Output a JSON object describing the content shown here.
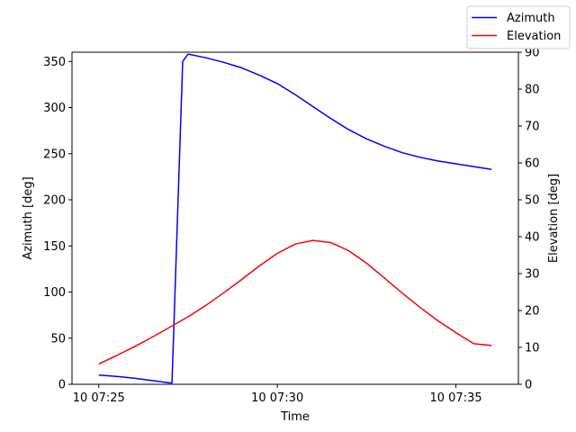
{
  "chart_data": {
    "type": "line",
    "xlabel": "Time",
    "ylabel_left": "Azimuth [deg]",
    "ylabel_right": "Elevation [deg]",
    "x_ticks": [
      "10 07:25",
      "10 07:30",
      "10 07:35"
    ],
    "x_tick_minutes": [
      0,
      5,
      10
    ],
    "x_range_minutes": [
      -0.75,
      11.75
    ],
    "y_left_range": [
      0,
      360
    ],
    "y_left_ticks": [
      "0",
      "50",
      "100",
      "150",
      "200",
      "250",
      "300",
      "350"
    ],
    "y_right_range": [
      0,
      90
    ],
    "y_right_ticks": [
      "0",
      "10",
      "20",
      "30",
      "40",
      "50",
      "60",
      "70",
      "80",
      "90"
    ],
    "grid": false,
    "legend_position": "top-right",
    "series": [
      {
        "name": "Azimuth",
        "axis": "left",
        "color": "#0000ff",
        "x_minutes": [
          0,
          0.5,
          1.0,
          1.5,
          2.0,
          2.05,
          2.35,
          2.5,
          3.0,
          3.5,
          4.0,
          4.5,
          5.0,
          5.5,
          6.0,
          6.5,
          7.0,
          7.5,
          8.0,
          8.5,
          9.0,
          9.5,
          10.0,
          10.5,
          11.0
        ],
        "values": [
          10,
          8.5,
          6.5,
          4,
          1.5,
          1.5,
          350,
          358,
          354,
          349,
          343,
          335,
          326,
          314,
          301,
          288,
          276,
          266,
          258,
          251,
          246,
          242,
          239,
          236,
          233
        ]
      },
      {
        "name": "Elevation",
        "axis": "right",
        "color": "#ff0000",
        "x_minutes": [
          0,
          0.5,
          1.0,
          1.5,
          2.0,
          2.5,
          3.0,
          3.5,
          4.0,
          4.5,
          5.0,
          5.5,
          6.0,
          6.5,
          7.0,
          7.5,
          8.0,
          8.5,
          9.0,
          9.5,
          10.0,
          10.5,
          11.0
        ],
        "values": [
          5.5,
          7.8,
          10.2,
          12.8,
          15.5,
          18.3,
          21.4,
          24.8,
          28.4,
          32.1,
          35.5,
          38.0,
          39.0,
          38.4,
          36.2,
          32.8,
          28.8,
          24.7,
          20.8,
          17.2,
          14.0,
          11.0,
          10.5
        ]
      }
    ]
  }
}
